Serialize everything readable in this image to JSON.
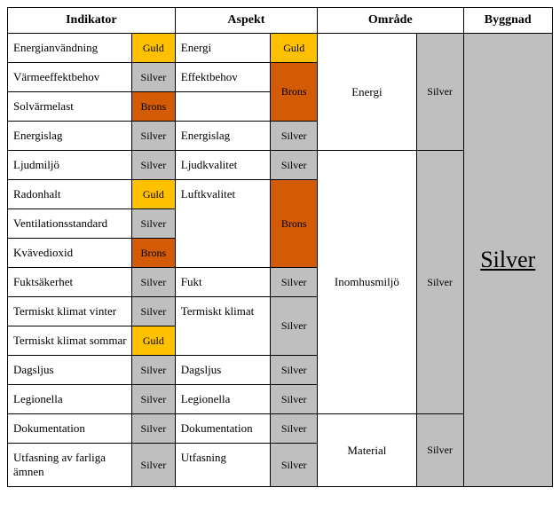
{
  "colors": {
    "guld": "#ffc000",
    "silver": "#bfbfbf",
    "brons": "#d35b06",
    "white": "#ffffff"
  },
  "headers": {
    "indikator": "Indikator",
    "aspekt": "Aspekt",
    "omrade": "Område",
    "byggnad": "Byggnad"
  },
  "colWidths": {
    "ind_label": 138,
    "ind_badge": 48,
    "asp_label": 106,
    "asp_badge": 52,
    "omr_label": 110,
    "omr_badge": 52,
    "byggnad": 99
  },
  "indikator": [
    {
      "label": "Energianvändning",
      "rating": "Guld",
      "color": "guld"
    },
    {
      "label": "Värmeeffektbehov",
      "rating": "Silver",
      "color": "silver"
    },
    {
      "label": "Solvärmelast",
      "rating": "Brons",
      "color": "brons"
    },
    {
      "label": "Energislag",
      "rating": "Silver",
      "color": "silver"
    },
    {
      "label": "Ljudmiljö",
      "rating": "Silver",
      "color": "silver"
    },
    {
      "label": "Radonhalt",
      "rating": "Guld",
      "color": "guld"
    },
    {
      "label": "Ventilationsstandard",
      "rating": "Silver",
      "color": "silver"
    },
    {
      "label": "Kvävedioxid",
      "rating": "Brons",
      "color": "brons"
    },
    {
      "label": "Fuktsäkerhet",
      "rating": "Silver",
      "color": "silver"
    },
    {
      "label": "Termiskt klimat vinter",
      "rating": "Silver",
      "color": "silver"
    },
    {
      "label": "Termiskt klimat sommar",
      "rating": "Guld",
      "color": "guld"
    },
    {
      "label": "Dagsljus",
      "rating": "Silver",
      "color": "silver"
    },
    {
      "label": "Legionella",
      "rating": "Silver",
      "color": "silver"
    },
    {
      "label": "Dokumentation",
      "rating": "Silver",
      "color": "silver"
    },
    {
      "label": "Utfasning av farliga ämnen",
      "rating": "Silver",
      "color": "silver"
    }
  ],
  "aspekt": [
    {
      "label": "Energi",
      "label_rows": 1,
      "rating": "Guld",
      "rating_rows": 1,
      "color": "guld"
    },
    {
      "label": "Effektbehov",
      "label_rows": 1,
      "rating": "Brons",
      "rating_rows": 2,
      "color": "brons"
    },
    {
      "label": "",
      "label_rows": 1,
      "rating": null,
      "rating_rows": 0,
      "color": null
    },
    {
      "label": "Energislag",
      "label_rows": 1,
      "rating": "Silver",
      "rating_rows": 1,
      "color": "silver"
    },
    {
      "label": "Ljudkvalitet",
      "label_rows": 1,
      "rating": "Silver",
      "rating_rows": 1,
      "color": "silver"
    },
    {
      "label": "Luftkvalitet",
      "label_rows": 3,
      "rating": "Brons",
      "rating_rows": 3,
      "color": "brons"
    },
    {
      "label": null,
      "label_rows": 0,
      "rating": null,
      "rating_rows": 0,
      "color": null
    },
    {
      "label": null,
      "label_rows": 0,
      "rating": null,
      "rating_rows": 0,
      "color": null
    },
    {
      "label": "Fukt",
      "label_rows": 1,
      "rating": "Silver",
      "rating_rows": 1,
      "color": "silver"
    },
    {
      "label": "Termiskt klimat",
      "label_rows": 2,
      "rating": "Silver",
      "rating_rows": 2,
      "color": "silver"
    },
    {
      "label": null,
      "label_rows": 0,
      "rating": null,
      "rating_rows": 0,
      "color": null
    },
    {
      "label": "Dagsljus",
      "label_rows": 1,
      "rating": "Silver",
      "rating_rows": 1,
      "color": "silver"
    },
    {
      "label": "Legionella",
      "label_rows": 1,
      "rating": "Silver",
      "rating_rows": 1,
      "color": "silver"
    },
    {
      "label": "Dokumentation",
      "label_rows": 1,
      "rating": "Silver",
      "rating_rows": 1,
      "color": "silver"
    },
    {
      "label": "Utfasning",
      "label_rows": 1,
      "rating": "Silver",
      "rating_rows": 1,
      "color": "silver"
    }
  ],
  "omrade": [
    {
      "label": "Energi",
      "rows": 4,
      "rating": "Silver",
      "color": "silver"
    },
    {
      "label": "Inomhusmiljö",
      "rows": 9,
      "rating": "Silver",
      "color": "silver"
    },
    {
      "label": "Material",
      "rows": 2,
      "rating": "Silver",
      "color": "silver"
    }
  ],
  "byggnad": {
    "rating": "Silver",
    "color": "silver",
    "rows": 15
  }
}
